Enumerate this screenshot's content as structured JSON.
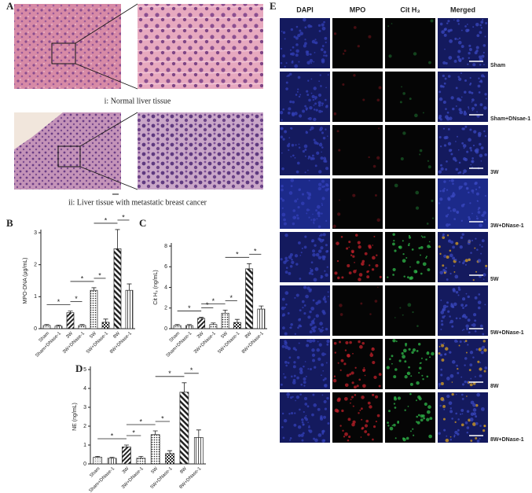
{
  "panel_a": {
    "label": "A",
    "captions": [
      "i: Normal liver tissue",
      "ii: Liver tissue with metastatic breast cancer"
    ]
  },
  "panel_e": {
    "label": "E",
    "columns": [
      "DAPI",
      "MPO",
      "Cit H₃",
      "Merged"
    ],
    "rows": [
      "Sham",
      "Sham+DNsae-1",
      "3W",
      "3W+DNase-1",
      "5W",
      "5W+DNase-1",
      "8W",
      "8W+DNase-1"
    ]
  },
  "chart_data": [
    {
      "type": "bar",
      "panel": "B",
      "ylabel": "MPO-DNA (μg/mL)",
      "categories": [
        "Sham",
        "Sham+DNase-1",
        "3W",
        "3W+DNase-1",
        "5W",
        "5W+DNase-1",
        "8W",
        "8W+DNase-1"
      ],
      "values": [
        0.1,
        0.08,
        0.5,
        0.1,
        1.2,
        0.2,
        2.5,
        1.2
      ],
      "errors": [
        0.03,
        0.03,
        0.05,
        0.03,
        0.08,
        0.1,
        0.6,
        0.2
      ],
      "ylim": [
        0,
        3
      ],
      "yticks": [
        0,
        1,
        2,
        3
      ],
      "significance": [
        {
          "from": 0,
          "to": 2,
          "label": "*"
        },
        {
          "from": 2,
          "to": 3,
          "label": "*"
        },
        {
          "from": 2,
          "to": 4,
          "label": "*"
        },
        {
          "from": 4,
          "to": 5,
          "label": "*"
        },
        {
          "from": 4,
          "to": 6,
          "label": "*"
        },
        {
          "from": 6,
          "to": 7,
          "label": "*"
        }
      ]
    },
    {
      "type": "bar",
      "panel": "C",
      "ylabel": "Cit H₃ (ng/mL)",
      "categories": [
        "Sham",
        "Sham+DNase-1",
        "3W",
        "3W+DNase-1",
        "5W",
        "5W+DNase-1",
        "8W",
        "8W+DNase-1"
      ],
      "values": [
        0.3,
        0.3,
        1.0,
        0.4,
        1.5,
        0.6,
        5.8,
        1.9
      ],
      "errors": [
        0.1,
        0.1,
        0.1,
        0.15,
        0.3,
        0.3,
        0.5,
        0.3
      ],
      "ylim": [
        0,
        8
      ],
      "yticks": [
        0,
        2,
        4,
        6,
        8
      ],
      "significance": [
        {
          "from": 0,
          "to": 2,
          "label": "*"
        },
        {
          "from": 2,
          "to": 3,
          "label": "*"
        },
        {
          "from": 2,
          "to": 4,
          "label": "*"
        },
        {
          "from": 4,
          "to": 5,
          "label": "*"
        },
        {
          "from": 4,
          "to": 6,
          "label": "*"
        },
        {
          "from": 6,
          "to": 7,
          "label": "*"
        }
      ]
    },
    {
      "type": "bar",
      "panel": "D",
      "ylabel": "NE (ng/mL)",
      "categories": [
        "Sham",
        "Sham+DNase-1",
        "3W",
        "3W+DNase-1",
        "5W",
        "5W+DNase-1",
        "8W",
        "8W+DNase-1"
      ],
      "values": [
        0.35,
        0.3,
        0.9,
        0.3,
        1.55,
        0.55,
        3.8,
        1.4
      ],
      "errors": [
        0.05,
        0.05,
        0.1,
        0.1,
        0.2,
        0.15,
        0.5,
        0.4
      ],
      "ylim": [
        0,
        5
      ],
      "yticks": [
        0,
        1,
        2,
        3,
        4,
        5
      ],
      "significance": [
        {
          "from": 0,
          "to": 2,
          "label": "*"
        },
        {
          "from": 2,
          "to": 3,
          "label": "*"
        },
        {
          "from": 2,
          "to": 4,
          "label": "*"
        },
        {
          "from": 4,
          "to": 5,
          "label": "*"
        },
        {
          "from": 4,
          "to": 6,
          "label": "*"
        },
        {
          "from": 6,
          "to": 7,
          "label": "*"
        }
      ]
    }
  ]
}
